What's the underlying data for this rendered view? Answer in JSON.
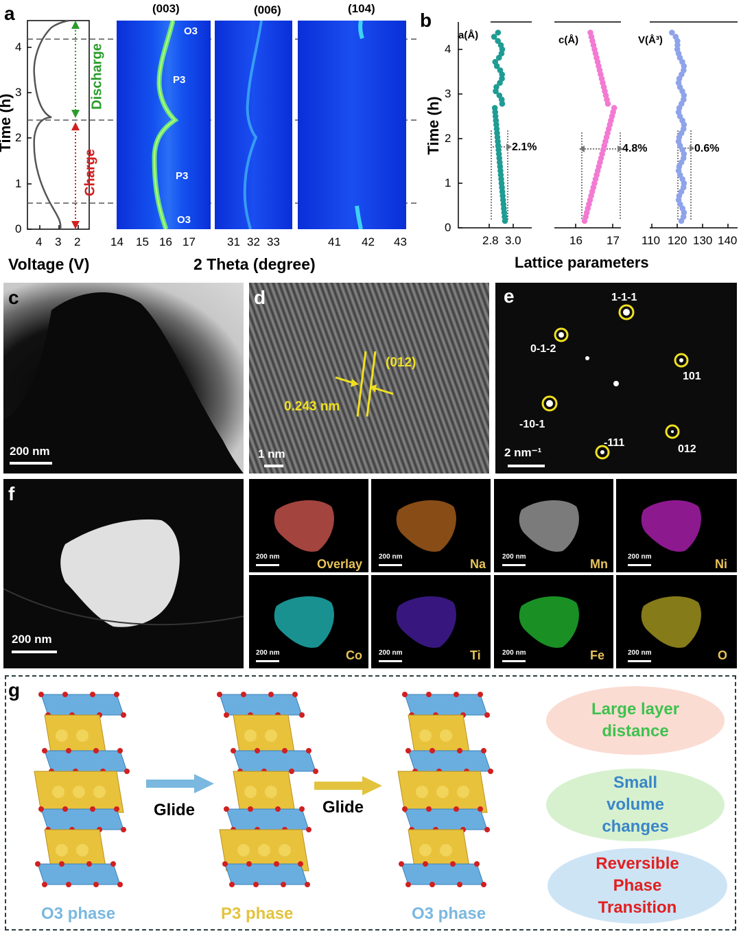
{
  "panels": {
    "a": "a",
    "b": "b",
    "c": "c",
    "d": "d",
    "e": "e",
    "f": "f",
    "g": "g"
  },
  "panel_a": {
    "voltage_axis_label": "Voltage (V)",
    "voltage_ticks": [
      "4",
      "3",
      "2"
    ],
    "time_axis_label": "Time (h)",
    "time_ticks": [
      "0",
      "1",
      "2",
      "3",
      "4"
    ],
    "discharge_label": "Discharge",
    "charge_label": "Charge",
    "theta_axis_label": "2 Theta (degree)",
    "peak_labels": [
      "(003)",
      "(006)",
      "(104)"
    ],
    "theta_ticks_1": [
      "14",
      "15",
      "16",
      "17"
    ],
    "theta_ticks_2": [
      "31",
      "32",
      "33"
    ],
    "theta_ticks_3": [
      "41",
      "42",
      "43"
    ],
    "phase_labels": [
      "O3",
      "P3",
      "P3",
      "O3"
    ]
  },
  "panel_b": {
    "axis_label": "Lattice parameters",
    "time_axis_label": "Time (h)",
    "time_ticks": [
      "0",
      "1",
      "2",
      "3",
      "4"
    ],
    "a_label": "a(Å)",
    "c_label": "c(Å)",
    "v_label": "V(Å³)",
    "a_ticks": [
      "2.8",
      "3.0"
    ],
    "c_ticks": [
      "16",
      "17"
    ],
    "v_ticks": [
      "110",
      "120",
      "130",
      "140"
    ],
    "a_change": "2.1%",
    "c_change": "4.8%",
    "v_change": "0.6%",
    "a_color": "#1f9c93",
    "c_color": "#f27ad2",
    "v_color": "#8ea3ea"
  },
  "panel_c": {
    "scale": "200 nm"
  },
  "panel_d": {
    "scale": "1 nm",
    "d_spacing": "0.243 nm",
    "plane": "(012)"
  },
  "panel_e": {
    "scale": "2 nm⁻¹",
    "spots": [
      "1-1-1",
      "0-1-2",
      "101",
      "-10-1",
      "-111",
      "012"
    ]
  },
  "panel_f": {
    "scale": "200 nm",
    "maps": [
      {
        "label": "Overlay",
        "scale": "200 nm",
        "color": "#c0504a"
      },
      {
        "label": "Na",
        "scale": "200 nm",
        "color": "#b5651d"
      },
      {
        "label": "Mn",
        "scale": "200 nm",
        "color": "#9a9a9a"
      },
      {
        "label": "Ni",
        "scale": "200 nm",
        "color": "#b01fb3"
      },
      {
        "label": "Co",
        "scale": "200 nm",
        "color": "#1fb5b5"
      },
      {
        "label": "Ti",
        "scale": "200 nm",
        "color": "#4a1fa8"
      },
      {
        "label": "Fe",
        "scale": "200 nm",
        "color": "#1fa82a"
      },
      {
        "label": "O",
        "scale": "200 nm",
        "color": "#a89a1f"
      }
    ]
  },
  "panel_g": {
    "glide_1": "Glide",
    "glide_2": "Glide",
    "o3_phase_1": "O3 phase",
    "p3_phase": "P3 phase",
    "o3_phase_2": "O3 phase",
    "feature_1": "Large layer distance",
    "feature_2": "Small volume changes",
    "feature_3": "Reversible Phase Transition",
    "feature_1_color": "#3fc14f",
    "feature_2_color": "#3a86c8",
    "feature_3_color": "#e02020"
  }
}
